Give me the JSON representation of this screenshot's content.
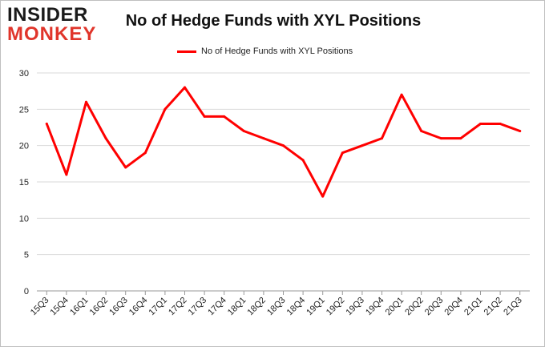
{
  "logo": {
    "line1": "INSIDER",
    "line2": "MONKEY"
  },
  "colors": {
    "series": "#ff0000",
    "grid": "#d9d9d9",
    "axis": "#999999"
  },
  "chart_data": {
    "type": "line",
    "title": "No of Hedge Funds with XYL Positions",
    "xlabel": "",
    "ylabel": "",
    "ylim": [
      0,
      30
    ],
    "yticks": [
      0,
      5,
      10,
      15,
      20,
      25,
      30
    ],
    "grid": true,
    "legend_position": "top-center",
    "categories": [
      "15Q3",
      "15Q4",
      "16Q1",
      "16Q2",
      "16Q3",
      "16Q4",
      "17Q1",
      "17Q2",
      "17Q3",
      "17Q4",
      "18Q1",
      "18Q2",
      "18Q3",
      "18Q4",
      "19Q1",
      "19Q2",
      "19Q3",
      "19Q4",
      "20Q1",
      "20Q2",
      "20Q3",
      "20Q4",
      "21Q1",
      "21Q2",
      "21Q3"
    ],
    "series": [
      {
        "name": "No of Hedge Funds with XYL Positions",
        "values": [
          23,
          16,
          26,
          21,
          17,
          19,
          25,
          28,
          24,
          24,
          22,
          21,
          20,
          18,
          13,
          19,
          20,
          21,
          27,
          22,
          21,
          21,
          23,
          23,
          22
        ]
      }
    ]
  }
}
